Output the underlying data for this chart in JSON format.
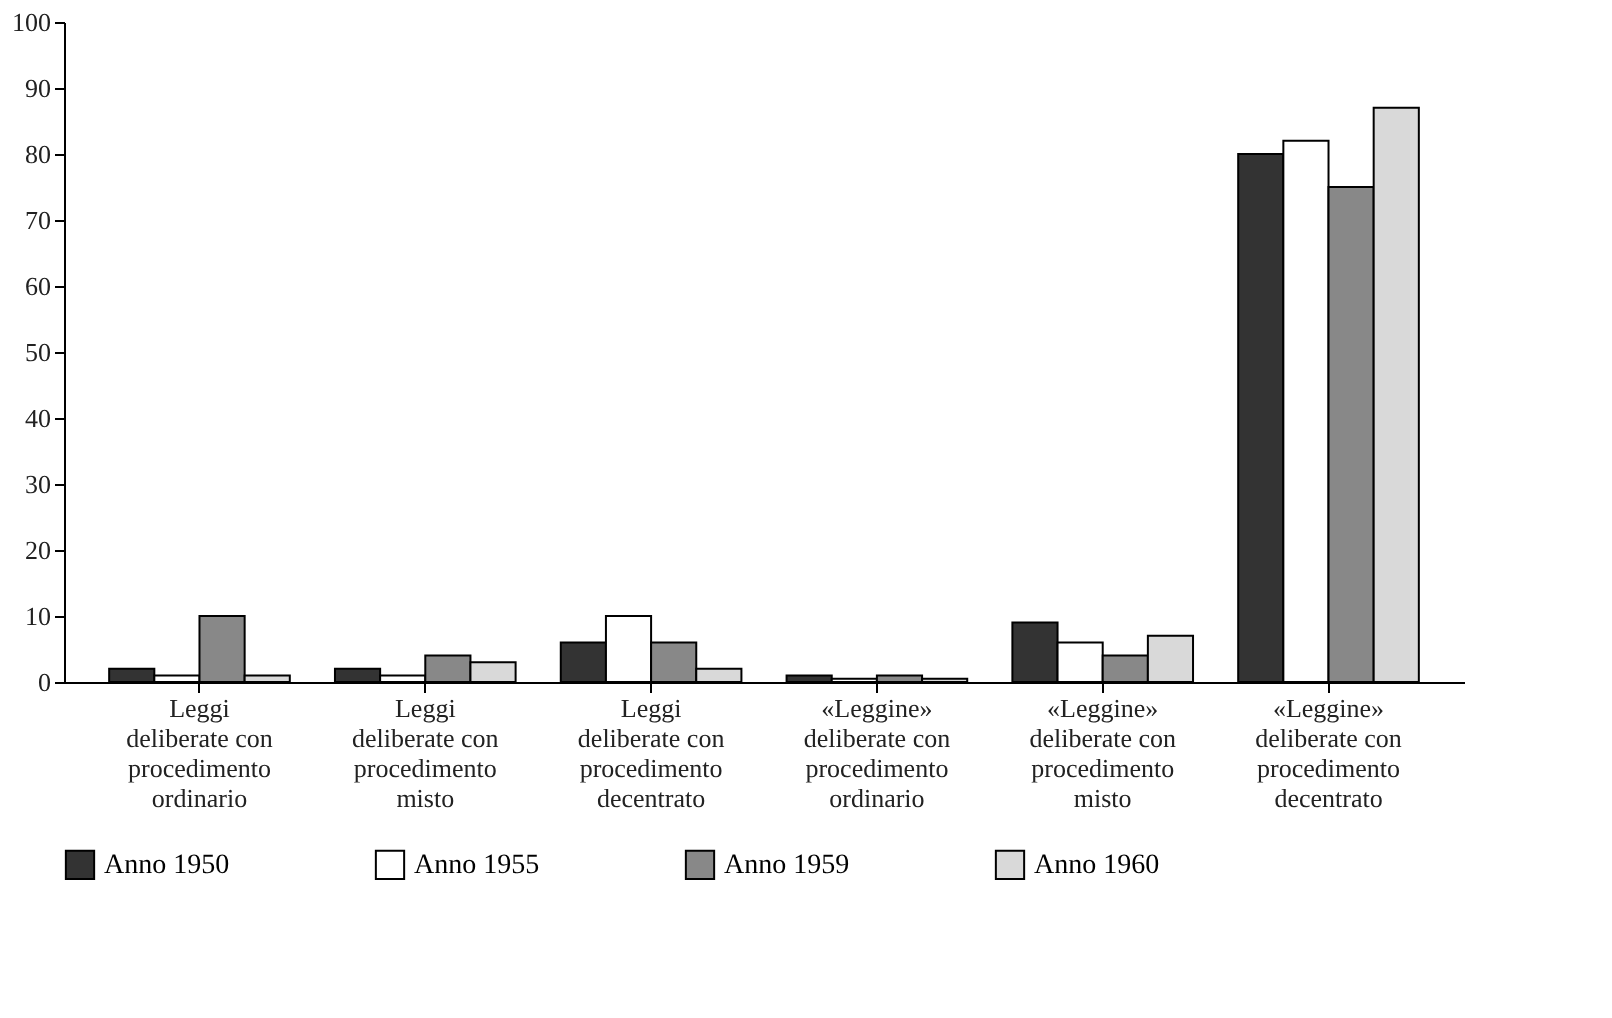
{
  "chart_data": {
    "type": "bar",
    "categories": [
      "Leggi deliberate con procedimento ordinario",
      "Leggi deliberate con procedimento misto",
      "Leggi deliberate con procedimento decentrato",
      "«Leggine» deliberate con procedimento ordinario",
      "«Leggine» deliberate con procedimento misto",
      "«Leggine» deliberate con procedimento decentrato"
    ],
    "series": [
      {
        "name": "Anno 1950",
        "color": "#333333",
        "values": [
          2,
          2,
          6,
          1,
          9,
          80
        ]
      },
      {
        "name": "Anno 1955",
        "color": "#ffffff",
        "values": [
          1,
          1,
          10,
          0.5,
          6,
          82
        ]
      },
      {
        "name": "Anno 1959",
        "color": "#888888",
        "values": [
          10,
          4,
          6,
          1,
          4,
          75
        ]
      },
      {
        "name": "Anno 1960",
        "color": "#d9d9d9",
        "values": [
          1,
          3,
          2,
          0.5,
          7,
          87
        ]
      }
    ],
    "ylim": [
      0,
      100
    ],
    "yticks": [
      0,
      10,
      20,
      30,
      40,
      50,
      60,
      70,
      80,
      90,
      100
    ],
    "grid": false,
    "legend": "bottom"
  }
}
